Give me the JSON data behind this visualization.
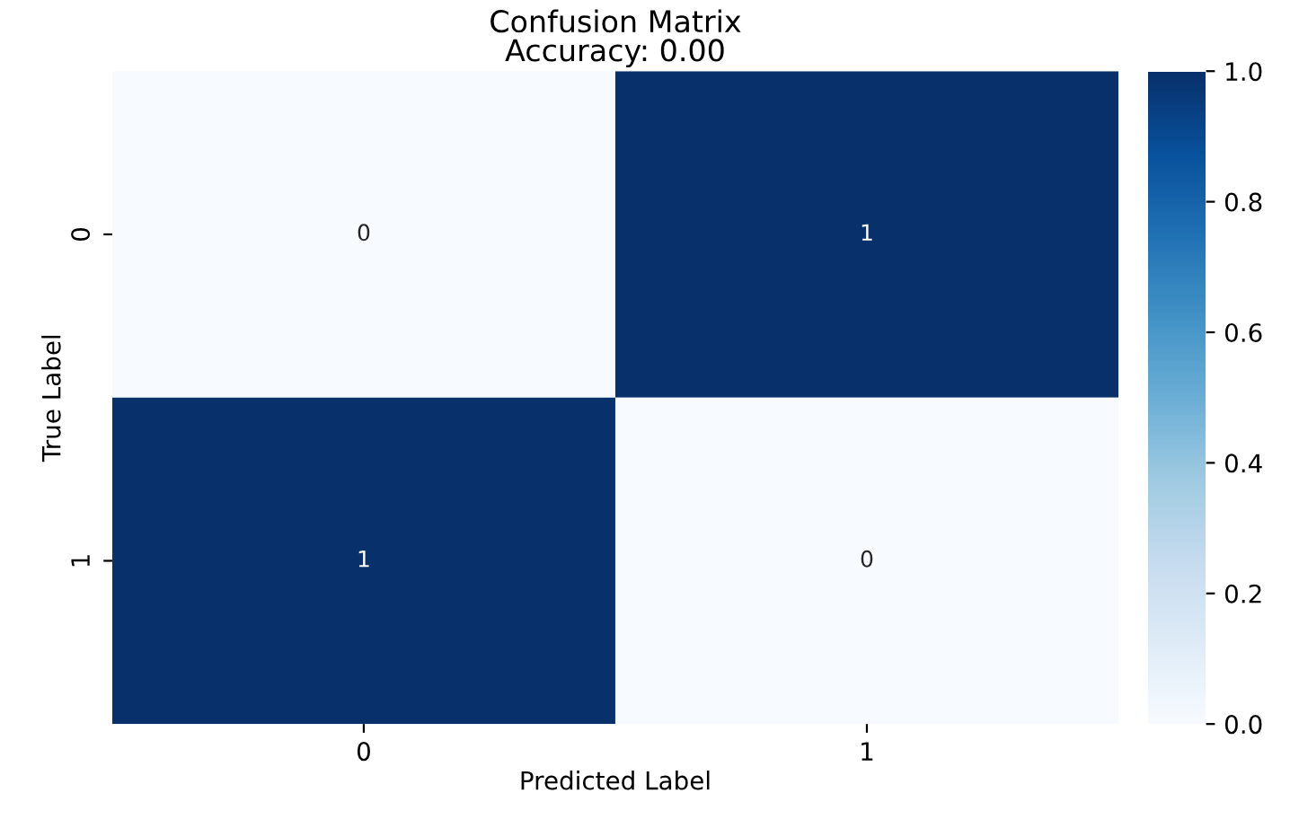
{
  "chart_data": {
    "type": "heatmap",
    "title": "Confusion Matrix\nAccuracy: 0.00",
    "xlabel": "Predicted Label",
    "ylabel": "True Label",
    "categories": [
      "0",
      "1"
    ],
    "y_categories": [
      "0",
      "1"
    ],
    "cells": [
      [
        0,
        1
      ],
      [
        1,
        0
      ]
    ],
    "data_labels": true,
    "clim": [
      0,
      1
    ],
    "cticks": [
      {
        "value": 0,
        "label": "0.0"
      },
      {
        "value": 0.2,
        "label": "0.2"
      },
      {
        "value": 0.4,
        "label": "0.4"
      },
      {
        "value": 0.6,
        "label": "0.6"
      },
      {
        "value": 0.8,
        "label": "0.8"
      },
      {
        "value": 1,
        "label": "1.0"
      }
    ]
  }
}
